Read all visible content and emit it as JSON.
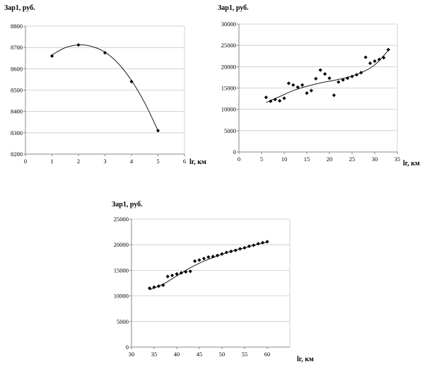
{
  "chart_data": [
    {
      "type": "scatter",
      "title": "",
      "ylabel": "Зар1, руб.",
      "xlabel": "lг, км",
      "xlim": [
        0,
        6
      ],
      "ylim": [
        8200,
        8800
      ],
      "xticks": [
        0,
        1,
        2,
        3,
        4,
        5,
        6
      ],
      "yticks": [
        8200,
        8300,
        8400,
        8500,
        8600,
        8700,
        8800
      ],
      "grid": "horizontal",
      "trendline": "polynomial",
      "series": [
        {
          "x": [
            1,
            2,
            3,
            4,
            5
          ],
          "y": [
            8660,
            8712,
            8675,
            8540,
            8310
          ]
        }
      ],
      "trend": {
        "x": [
          1,
          1.5,
          2,
          2.5,
          3,
          3.5,
          4,
          4.5,
          5
        ],
        "y": [
          8665,
          8699,
          8712,
          8705,
          8678,
          8625,
          8545,
          8440,
          8310
        ]
      }
    },
    {
      "type": "scatter",
      "title": "",
      "ylabel": "Зар1, руб.",
      "xlabel": "lг, км",
      "xlim": [
        0,
        35
      ],
      "ylim": [
        0,
        30000
      ],
      "xticks": [
        0,
        5,
        10,
        15,
        20,
        25,
        30,
        35
      ],
      "yticks": [
        0,
        5000,
        10000,
        15000,
        20000,
        25000,
        30000
      ],
      "grid": "horizontal",
      "trendline": "polynomial",
      "series": [
        {
          "x": [
            6,
            7,
            8,
            9,
            10,
            11,
            12,
            13,
            14,
            15,
            16,
            17,
            18,
            19,
            20,
            21,
            22,
            23,
            24,
            25,
            26,
            27,
            28,
            29,
            30,
            31,
            32,
            33
          ],
          "y": [
            12800,
            11900,
            12300,
            12000,
            12600,
            16100,
            15700,
            15200,
            15700,
            13800,
            14400,
            17200,
            19200,
            18300,
            17300,
            13300,
            16400,
            16900,
            17300,
            17700,
            18100,
            18600,
            22200,
            20800,
            21300,
            21700,
            22100,
            24000
          ]
        }
      ],
      "trend": {
        "x": [
          6,
          9,
          12,
          15,
          18,
          21,
          24,
          27,
          30,
          33
        ],
        "y": [
          11600,
          13000,
          14400,
          15400,
          16200,
          16800,
          17500,
          18600,
          20400,
          23800
        ]
      }
    },
    {
      "type": "scatter",
      "title": "",
      "ylabel": "Зар1, руб.",
      "xlabel": "lг, км",
      "xlim": [
        30,
        65
      ],
      "ylim": [
        0,
        25000
      ],
      "xticks": [
        30,
        35,
        40,
        45,
        50,
        55,
        60
      ],
      "yticks": [
        0,
        5000,
        10000,
        15000,
        20000,
        25000
      ],
      "grid": "horizontal",
      "trendline": "polynomial",
      "series": [
        {
          "x": [
            34,
            35,
            36,
            37,
            38,
            39,
            40,
            41,
            42,
            43,
            44,
            45,
            46,
            47,
            48,
            49,
            50,
            51,
            52,
            53,
            54,
            55,
            56,
            57,
            58,
            59,
            60
          ],
          "y": [
            11500,
            11700,
            11900,
            12100,
            13800,
            14000,
            14300,
            14500,
            14700,
            14800,
            16800,
            17000,
            17300,
            17600,
            17700,
            17900,
            18200,
            18500,
            18700,
            18900,
            19200,
            19400,
            19700,
            19900,
            20200,
            20400,
            20600
          ]
        }
      ],
      "trend": {
        "x": [
          34,
          37,
          40,
          43,
          46,
          49,
          52,
          55,
          58,
          60
        ],
        "y": [
          11200,
          12300,
          13900,
          15500,
          16800,
          17800,
          18700,
          19400,
          20100,
          20500
        ]
      }
    }
  ]
}
